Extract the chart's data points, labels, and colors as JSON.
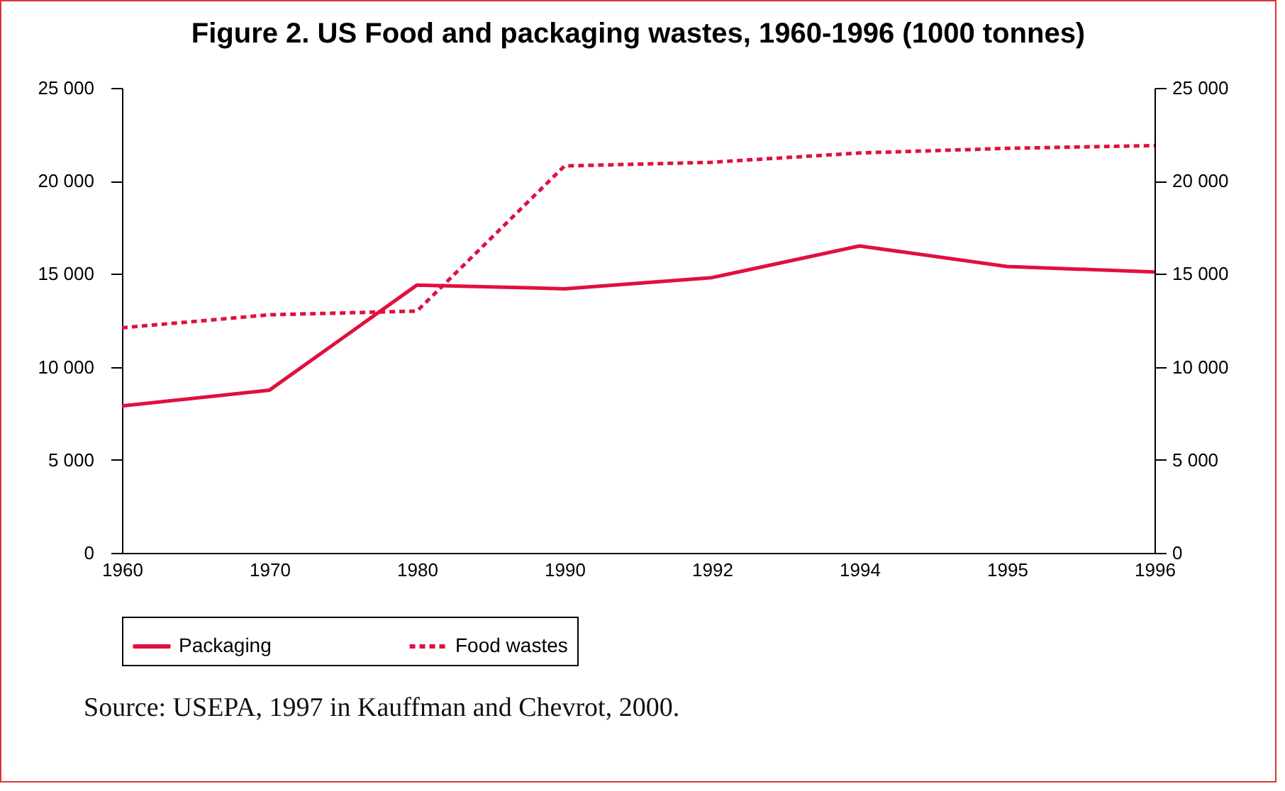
{
  "chart_data": {
    "type": "line",
    "title": "Figure 2.    US Food and packaging wastes, 1960-1996 (1000 tonnes)",
    "categories": [
      "1960",
      "1970",
      "1980",
      "1990",
      "1992",
      "1994",
      "1995",
      "1996"
    ],
    "series": [
      {
        "name": "Packaging",
        "color": "#e0103f",
        "line_style": "solid",
        "values": [
          7900,
          8750,
          14400,
          14200,
          14800,
          16500,
          15400,
          15100
        ]
      },
      {
        "name": "Food wastes",
        "color": "#e0103f",
        "line_style": "dotted",
        "values": [
          12100,
          12800,
          13000,
          20800,
          21000,
          21500,
          21750,
          21900
        ]
      }
    ],
    "ylim": [
      0,
      25000
    ],
    "yticks": [
      0,
      {
        "value": 5000,
        "label": "5 000"
      },
      {
        "value": 10000,
        "label": "10 000"
      },
      {
        "value": 15000,
        "label": "15 000"
      },
      {
        "value": 20000,
        "label": "20 000"
      },
      {
        "value": 25000,
        "label": "25 000"
      }
    ],
    "y2lim": [
      0,
      25000
    ],
    "y2ticks": [
      0,
      {
        "value": 5000,
        "label": "5 000"
      },
      {
        "value": 10000,
        "label": "10 000"
      },
      {
        "value": 15000,
        "label": "15 000"
      },
      {
        "value": 20000,
        "label": "20 000"
      },
      {
        "value": 25000,
        "label": "25 000"
      }
    ],
    "legend": "bottom",
    "grid": false,
    "annotations": [
      "Source: USEPA, 1997 in Kauffman and Chevrot, 2000."
    ]
  }
}
